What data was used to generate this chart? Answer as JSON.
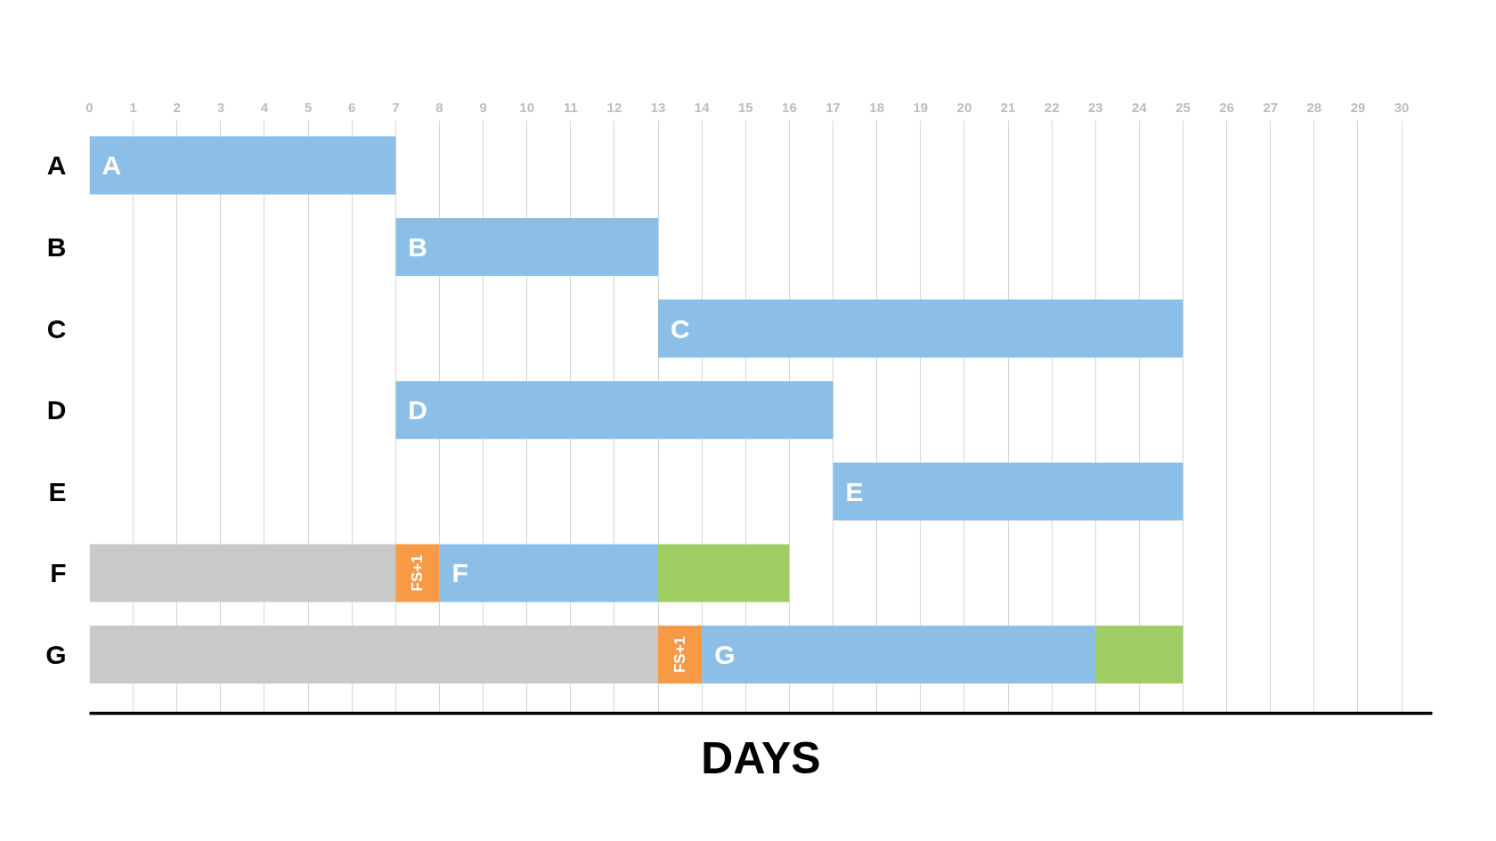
{
  "chart_data": {
    "type": "bar",
    "orientation": "horizontal",
    "xlabel": "DAYS",
    "categories": [
      "A",
      "B",
      "C",
      "D",
      "E",
      "F",
      "G"
    ],
    "series": [
      {
        "color": "#c8c9cb",
        "base": [
          null,
          null,
          null,
          null,
          null,
          0,
          0
        ],
        "values": [
          null,
          null,
          null,
          null,
          null,
          7,
          13
        ]
      },
      {
        "color": "#f79a45",
        "base": [
          null,
          null,
          null,
          null,
          null,
          7,
          13
        ],
        "values": [
          null,
          null,
          null,
          null,
          null,
          1,
          1
        ],
        "value_labels": [
          null,
          null,
          null,
          null,
          null,
          "FS+1",
          "FS+1"
        ]
      },
      {
        "color": "#8bbfe8",
        "base": [
          0,
          7,
          13,
          7,
          17,
          8,
          14
        ],
        "values": [
          7,
          6,
          12,
          10,
          8,
          5,
          9
        ]
      },
      {
        "color": "#a0cd63",
        "base": [
          null,
          null,
          null,
          null,
          null,
          13,
          23
        ],
        "values": [
          null,
          null,
          null,
          null,
          null,
          3,
          2
        ]
      }
    ],
    "xlim": [
      0,
      30.7
    ],
    "xticks": [
      0,
      1,
      2,
      3,
      4,
      5,
      6,
      7,
      8,
      9,
      10,
      11,
      12,
      13,
      14,
      15,
      16,
      17,
      18,
      19,
      20,
      21,
      22,
      23,
      24,
      25,
      26,
      27,
      28,
      29,
      30
    ],
    "grid": "x",
    "annotations": [
      {
        "text": "A",
        "x": 0,
        "y": "A"
      },
      {
        "text": "B",
        "x": 7,
        "y": "B"
      },
      {
        "text": "C",
        "x": 13,
        "y": "C"
      },
      {
        "text": "D",
        "x": 7,
        "y": "D"
      },
      {
        "text": "E",
        "x": 17,
        "y": "E"
      },
      {
        "text": "F",
        "x": 8,
        "y": "F"
      },
      {
        "text": "G",
        "x": 14,
        "y": "G"
      }
    ]
  }
}
